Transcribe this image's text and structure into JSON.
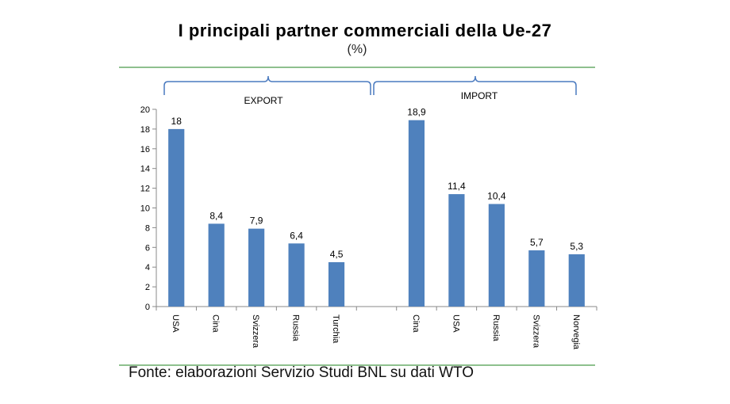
{
  "title": "I principali partner commerciali della Ue-27",
  "subtitle": "(%)",
  "source": "Fonte: elaborazioni Servizio Studi BNL su dati WTO",
  "chart_data": {
    "type": "bar",
    "bar_color": "#4f81bd",
    "ylim": [
      0,
      20
    ],
    "yticks": [
      0,
      2,
      4,
      6,
      8,
      10,
      12,
      14,
      16,
      18,
      20
    ],
    "groups": [
      {
        "name": "EXPORT",
        "categories": [
          "USA",
          "Cina",
          "Svizzera",
          "Russia",
          "Turchia"
        ],
        "values": [
          18,
          8.4,
          7.9,
          6.4,
          4.5
        ],
        "value_labels": [
          "18",
          "8,4",
          "7,9",
          "6,4",
          "4,5"
        ]
      },
      {
        "name": "IMPORT",
        "categories": [
          "Cina",
          "USA",
          "Russia",
          "Svizzera",
          "Norvegia"
        ],
        "values": [
          18.9,
          11.4,
          10.4,
          5.7,
          5.3
        ],
        "value_labels": [
          "18,9",
          "11,4",
          "10,4",
          "5,7",
          "5,3"
        ]
      }
    ]
  }
}
